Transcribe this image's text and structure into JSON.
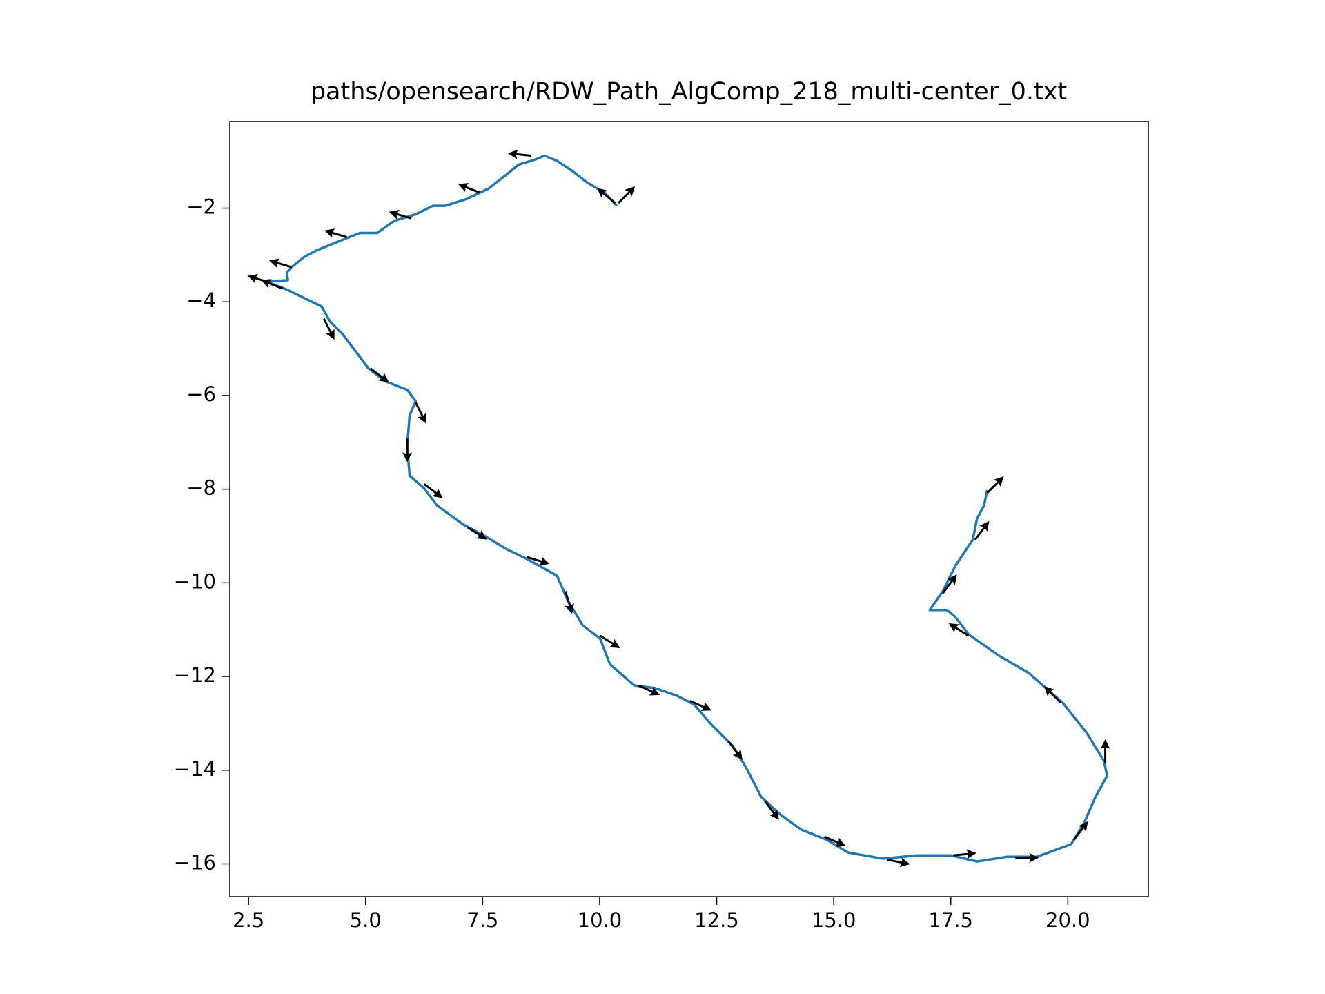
{
  "chart_data": {
    "type": "line",
    "title": "paths/opensearch/RDW_Path_AlgComp_218_multi-center_0.txt",
    "color": "#1f77b4",
    "x": [
      10.37,
      10.1,
      9.73,
      9.42,
      9.09,
      8.82,
      8.63,
      8.27,
      7.99,
      7.63,
      7.17,
      6.71,
      6.44,
      6.07,
      5.61,
      5.25,
      4.88,
      4.42,
      3.96,
      3.69,
      3.42,
      3.32,
      3.34,
      2.87,
      3.32,
      3.69,
      4.06,
      4.24,
      4.51,
      4.79,
      5.06,
      5.43,
      5.89,
      6.07,
      5.94,
      5.89,
      5.94,
      6.25,
      6.53,
      7.08,
      7.53,
      7.99,
      8.45,
      9.09,
      9.31,
      9.64,
      10.01,
      10.22,
      10.74,
      11.19,
      11.65,
      12.02,
      12.38,
      12.84,
      13.12,
      13.45,
      13.85,
      14.31,
      14.86,
      15.31,
      16.05,
      16.78,
      17.51,
      18.06,
      18.7,
      19.34,
      20.07,
      20.35,
      20.59,
      20.84,
      20.77,
      20.4,
      19.89,
      19.16,
      18.52,
      17.88,
      17.6,
      17.42,
      17.05,
      17.33,
      17.6,
      17.97,
      18.06,
      18.21,
      18.28
    ],
    "values": [
      -1.95,
      -1.67,
      -1.45,
      -1.21,
      -0.99,
      -0.88,
      -0.96,
      -1.07,
      -1.3,
      -1.58,
      -1.8,
      -1.95,
      -1.95,
      -2.13,
      -2.27,
      -2.53,
      -2.53,
      -2.71,
      -2.9,
      -3.04,
      -3.26,
      -3.37,
      -3.54,
      -3.56,
      -3.74,
      -3.92,
      -4.1,
      -4.42,
      -4.69,
      -5.06,
      -5.42,
      -5.7,
      -5.88,
      -6.12,
      -6.43,
      -7.07,
      -7.71,
      -7.98,
      -8.35,
      -8.75,
      -8.99,
      -9.27,
      -9.49,
      -9.85,
      -10.36,
      -10.91,
      -11.19,
      -11.74,
      -12.19,
      -12.25,
      -12.41,
      -12.6,
      -13.02,
      -13.48,
      -13.93,
      -14.57,
      -14.94,
      -15.27,
      -15.49,
      -15.76,
      -15.89,
      -15.82,
      -15.82,
      -15.95,
      -15.85,
      -15.85,
      -15.58,
      -15.12,
      -14.57,
      -14.12,
      -13.8,
      -13.2,
      -12.56,
      -11.92,
      -11.55,
      -11.1,
      -10.73,
      -10.58,
      -10.58,
      -10.18,
      -9.63,
      -9.08,
      -8.63,
      -8.35,
      -8.02
    ],
    "arrows": {
      "color": "#000000",
      "x": [
        8.54,
        7.44,
        5.98,
        4.6,
        3.42,
        2.96,
        3.23,
        4.11,
        5.1,
        6.07,
        5.89,
        6.25,
        7.17,
        8.45,
        9.27,
        10.01,
        10.83,
        11.93,
        12.75,
        13.53,
        14.8,
        16.14,
        17.55,
        18.88,
        20.13,
        20.8,
        19.85,
        17.88,
        17.33,
        18.02,
        18.28,
        10.33,
        10.4
      ],
      "y": [
        -0.88,
        -1.67,
        -2.22,
        -2.62,
        -3.26,
        -3.59,
        -3.72,
        -4.36,
        -5.42,
        -6.15,
        -6.92,
        -7.89,
        -8.81,
        -9.45,
        -10.18,
        -11.13,
        -12.19,
        -12.52,
        -13.38,
        -14.66,
        -15.42,
        -15.91,
        -15.82,
        -15.87,
        -15.49,
        -13.84,
        -12.56,
        -11.13,
        -10.22,
        -9.08,
        -8.08,
        -1.89,
        -1.89
      ],
      "u": [
        -1,
        -1,
        -1,
        -1,
        -1,
        -1,
        -1,
        0.5,
        0.8,
        0.5,
        0,
        0.8,
        0.8,
        1,
        0.3,
        0.8,
        0.9,
        0.9,
        0.6,
        0.6,
        0.9,
        1,
        1,
        1,
        0.6,
        0,
        -0.7,
        -0.8,
        0.6,
        0.6,
        0.7,
        -0.6,
        0.6
      ],
      "v": [
        0.1,
        0.4,
        0.3,
        0.3,
        0.3,
        0.3,
        0.4,
        -1,
        -0.6,
        -1,
        -1,
        -0.6,
        -0.5,
        -0.3,
        -1,
        -0.5,
        -0.4,
        -0.4,
        -0.8,
        -0.8,
        -0.4,
        -0.2,
        0.1,
        0,
        0.8,
        1,
        0.7,
        0.5,
        0.8,
        0.8,
        0.7,
        0.5,
        0.6
      ]
    },
    "xlim": [
      2.1,
      21.72
    ],
    "ylim": [
      -16.7,
      -0.15
    ],
    "xticks": [
      2.5,
      {
        "value": 5,
        "label": "5.0"
      },
      7.5,
      {
        "value": 10,
        "label": "10.0"
      },
      12.5,
      {
        "value": 15,
        "label": "15.0"
      },
      17.5,
      {
        "value": 20,
        "label": "20.0"
      }
    ],
    "yticks": [
      {
        "value": -2,
        "label": "−2"
      },
      {
        "value": -4,
        "label": "−4"
      },
      {
        "value": -6,
        "label": "−6"
      },
      {
        "value": -8,
        "label": "−8"
      },
      {
        "value": -10,
        "label": "−10"
      },
      {
        "value": -12,
        "label": "−12"
      },
      {
        "value": -14,
        "label": "−14"
      },
      {
        "value": -16,
        "label": "−16"
      }
    ]
  }
}
